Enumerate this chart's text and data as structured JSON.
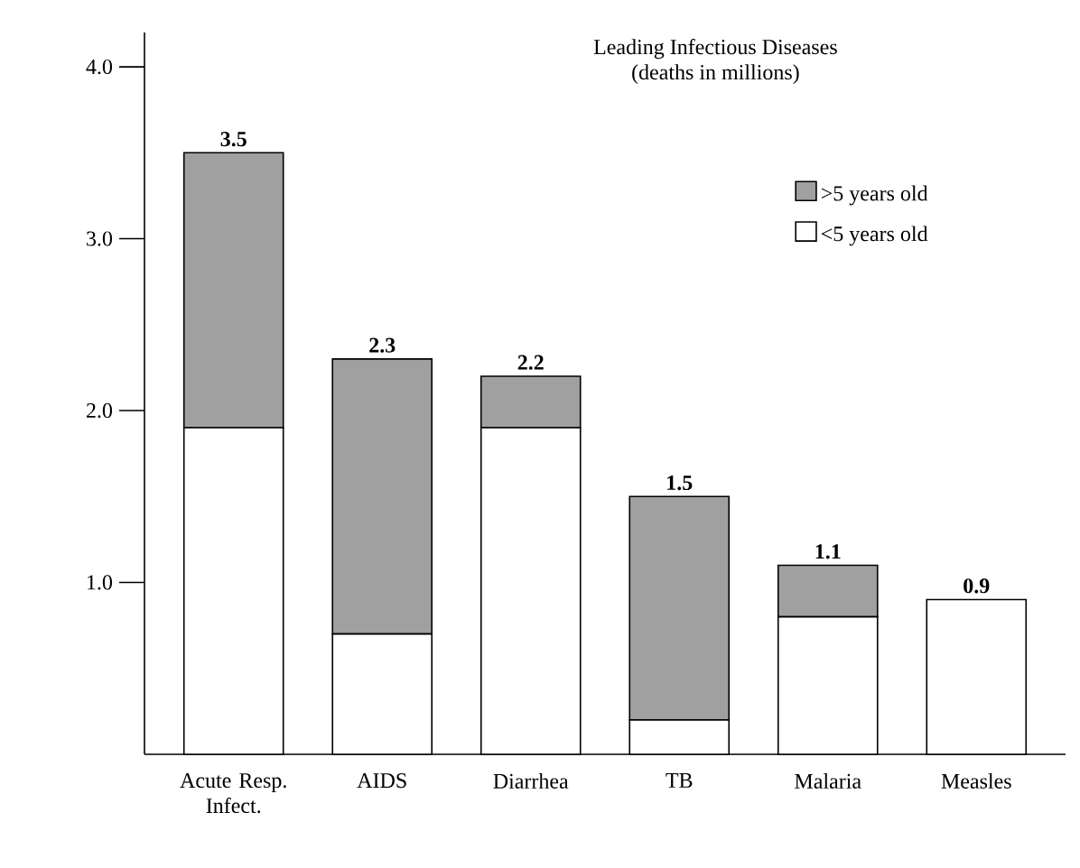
{
  "chart_data": {
    "type": "bar",
    "title": "Leading Infectious Diseases",
    "subtitle": "(deaths in millions)",
    "categories": [
      "Acute Resp. Infect.",
      "AIDS",
      "Diarrhea",
      "TB",
      "Malaria",
      "Measles"
    ],
    "series": [
      {
        "name": "<5 years old",
        "color": "#ffffff",
        "values": [
          1.9,
          0.7,
          1.9,
          0.2,
          0.8,
          0.9
        ]
      },
      {
        "name": ">5 years old",
        "color": "#a0a0a0",
        "values": [
          1.6,
          1.6,
          0.3,
          1.3,
          0.3,
          0
        ]
      }
    ],
    "stacked": true,
    "ylim": [
      0,
      4.2
    ],
    "yticks": [
      {
        "value": 1,
        "label": "1.0"
      },
      {
        "value": 2,
        "label": "2.0"
      },
      {
        "value": 3,
        "label": "3.0"
      },
      {
        "value": 4,
        "label": "4.0"
      }
    ],
    "totals": [
      "3.5",
      "2.3",
      "2.2",
      "1.5",
      "1.1",
      "0.9"
    ],
    "legend": "top right",
    "grid": false
  }
}
